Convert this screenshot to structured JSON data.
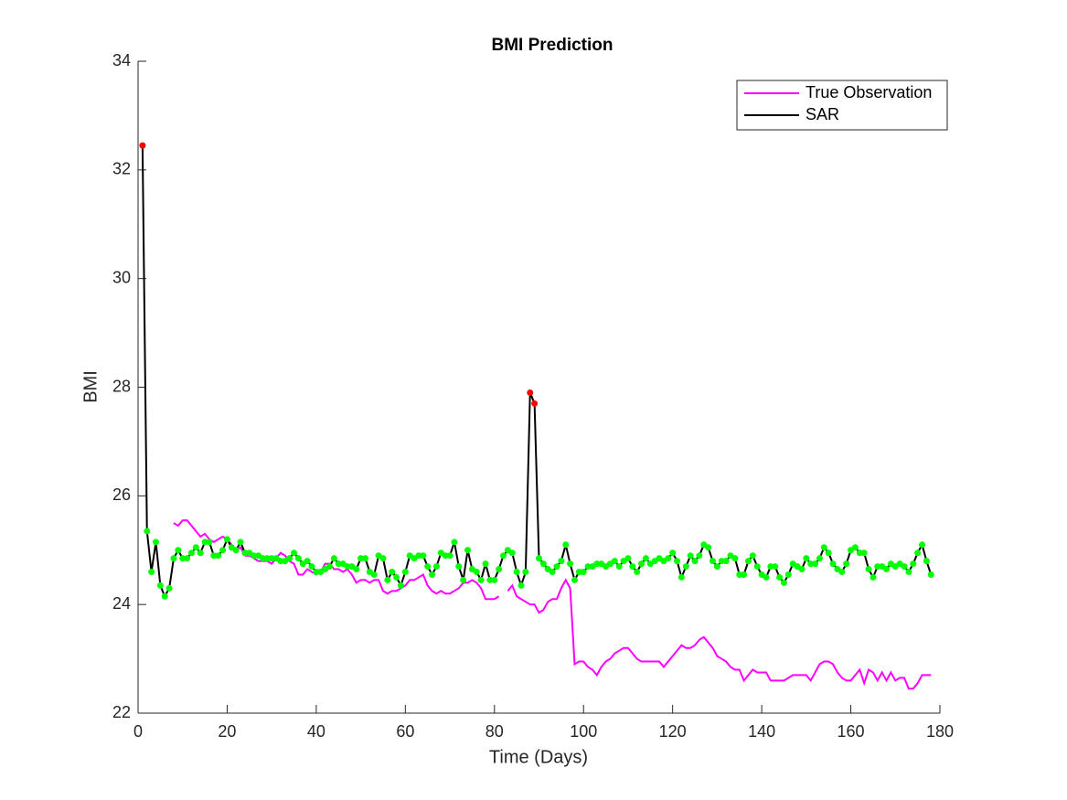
{
  "chart_data": {
    "type": "line",
    "title": "BMI Prediction",
    "x_label": "Time (Days)",
    "y_label": "BMI",
    "x": [
      1,
      2,
      3,
      4,
      5,
      6,
      7,
      8,
      9,
      10,
      11,
      12,
      13,
      14,
      15,
      16,
      17,
      18,
      19,
      20,
      21,
      22,
      23,
      24,
      25,
      26,
      27,
      28,
      29,
      30,
      31,
      32,
      33,
      34,
      35,
      36,
      37,
      38,
      39,
      40,
      41,
      42,
      43,
      44,
      45,
      46,
      47,
      48,
      49,
      50,
      51,
      52,
      53,
      54,
      55,
      56,
      57,
      58,
      59,
      60,
      61,
      62,
      63,
      64,
      65,
      66,
      67,
      68,
      69,
      70,
      71,
      72,
      73,
      74,
      75,
      76,
      77,
      78,
      79,
      80,
      81,
      82,
      83,
      84,
      85,
      86,
      87,
      88,
      89,
      90,
      91,
      92,
      93,
      94,
      95,
      96,
      97,
      98,
      99,
      100,
      101,
      102,
      103,
      104,
      105,
      106,
      107,
      108,
      109,
      110,
      111,
      112,
      113,
      114,
      115,
      116,
      117,
      118,
      119,
      120,
      121,
      122,
      123,
      124,
      125,
      126,
      127,
      128,
      129,
      130,
      131,
      132,
      133,
      134,
      135,
      136,
      137,
      138,
      139,
      140,
      141,
      142,
      143,
      144,
      145,
      146,
      147,
      148,
      149,
      150,
      151,
      152,
      153,
      154,
      155,
      156,
      157,
      158,
      159,
      160,
      161,
      162,
      163,
      164,
      165,
      166,
      167,
      168,
      169,
      170,
      171,
      172,
      173,
      174,
      175,
      176,
      177,
      178
    ],
    "series": [
      {
        "name": "True Observation",
        "color": "#ff00ff",
        "values": [
          null,
          null,
          null,
          null,
          null,
          null,
          null,
          25.5,
          25.45,
          25.55,
          25.55,
          25.45,
          25.35,
          25.25,
          25.3,
          25.2,
          25.15,
          25.2,
          25.25,
          25.2,
          25.1,
          25.0,
          25.05,
          24.9,
          24.9,
          24.85,
          24.8,
          24.8,
          24.8,
          24.75,
          24.85,
          24.95,
          24.9,
          24.8,
          24.75,
          24.55,
          24.55,
          24.65,
          24.6,
          24.55,
          24.6,
          24.75,
          24.75,
          24.65,
          24.65,
          24.6,
          24.65,
          24.55,
          24.4,
          24.45,
          24.45,
          24.4,
          24.45,
          24.45,
          24.25,
          24.2,
          24.25,
          24.25,
          24.3,
          24.35,
          24.45,
          24.45,
          24.5,
          24.55,
          24.35,
          24.25,
          24.2,
          24.25,
          24.2,
          24.2,
          24.25,
          24.3,
          24.4,
          24.4,
          24.45,
          24.4,
          24.3,
          24.1,
          24.1,
          24.1,
          24.15,
          null,
          24.25,
          24.35,
          24.15,
          24.1,
          24.05,
          24.0,
          24.0,
          23.85,
          23.9,
          24.05,
          24.1,
          24.1,
          24.3,
          24.45,
          24.3,
          22.9,
          22.95,
          22.95,
          22.85,
          22.8,
          22.7,
          22.85,
          22.95,
          23.0,
          23.1,
          23.15,
          23.2,
          23.2,
          23.1,
          23.0,
          22.95,
          22.95,
          22.95,
          22.95,
          22.95,
          22.85,
          22.95,
          23.05,
          23.15,
          23.25,
          23.2,
          23.2,
          23.25,
          23.35,
          23.4,
          23.3,
          23.2,
          23.05,
          23.0,
          22.95,
          22.85,
          22.8,
          22.8,
          22.6,
          22.7,
          22.8,
          22.75,
          22.75,
          22.75,
          22.6,
          22.6,
          22.6,
          22.6,
          22.65,
          22.7,
          22.7,
          22.7,
          22.7,
          22.6,
          22.75,
          22.9,
          22.95,
          22.95,
          22.9,
          22.75,
          22.65,
          22.6,
          22.6,
          22.7,
          22.8,
          22.55,
          22.8,
          22.75,
          22.6,
          22.75,
          22.6,
          22.75,
          22.6,
          22.65,
          22.65,
          22.45,
          22.45,
          22.55,
          22.7,
          22.7,
          22.7
        ]
      },
      {
        "name": "SAR",
        "color": "#000000",
        "values": [
          32.45,
          25.35,
          24.6,
          25.15,
          24.35,
          24.15,
          24.3,
          24.85,
          25.0,
          24.85,
          24.85,
          24.95,
          25.05,
          24.95,
          25.15,
          25.15,
          24.9,
          24.9,
          25.0,
          25.2,
          25.05,
          25.0,
          25.15,
          24.95,
          24.95,
          24.9,
          24.9,
          24.85,
          24.85,
          24.85,
          24.85,
          24.8,
          24.8,
          24.85,
          24.95,
          24.85,
          24.75,
          24.8,
          24.7,
          24.6,
          24.6,
          24.65,
          24.7,
          24.85,
          24.75,
          24.75,
          24.7,
          24.7,
          24.65,
          24.85,
          24.85,
          24.6,
          24.55,
          24.9,
          24.85,
          24.45,
          24.6,
          24.5,
          24.35,
          24.6,
          24.9,
          24.85,
          24.9,
          24.9,
          24.7,
          24.55,
          24.7,
          24.95,
          24.9,
          24.9,
          25.15,
          24.7,
          24.45,
          25.0,
          24.65,
          24.6,
          24.45,
          24.75,
          24.45,
          24.45,
          24.65,
          24.9,
          25.0,
          24.95,
          24.6,
          24.35,
          24.6,
          27.9,
          27.7,
          24.85,
          24.75,
          24.65,
          24.6,
          24.7,
          24.8,
          25.1,
          24.75,
          24.45,
          24.6,
          24.6,
          24.7,
          24.7,
          24.75,
          24.75,
          24.7,
          24.75,
          24.8,
          24.7,
          24.8,
          24.85,
          24.7,
          24.6,
          24.75,
          24.85,
          24.75,
          24.8,
          24.85,
          24.8,
          24.85,
          24.95,
          24.8,
          24.5,
          24.7,
          24.9,
          24.8,
          24.9,
          25.1,
          25.05,
          24.8,
          24.7,
          24.8,
          24.8,
          24.9,
          24.85,
          24.55,
          24.55,
          24.8,
          24.9,
          24.7,
          24.55,
          24.5,
          24.7,
          24.7,
          24.5,
          24.4,
          24.55,
          24.75,
          24.7,
          24.65,
          24.85,
          24.75,
          24.75,
          24.85,
          25.05,
          24.95,
          24.75,
          24.65,
          24.6,
          24.75,
          25.0,
          25.05,
          24.95,
          24.95,
          24.65,
          24.5,
          24.7,
          24.7,
          24.65,
          24.75,
          24.7,
          24.75,
          24.7,
          24.6,
          24.75,
          24.95,
          25.1,
          24.8,
          24.55
        ],
        "marker_colors": [
          "#ff0000",
          "#00ff00",
          "#00ff00",
          "#00ff00",
          "#00ff00",
          "#00ff00",
          "#00ff00",
          "#00ff00",
          "#00ff00",
          "#00ff00",
          "#00ff00",
          "#00ff00",
          "#00ff00",
          "#00ff00",
          "#00ff00",
          "#00ff00",
          "#00ff00",
          "#00ff00",
          "#00ff00",
          "#00ff00",
          "#00ff00",
          "#00ff00",
          "#00ff00",
          "#00ff00",
          "#00ff00",
          "#00ff00",
          "#00ff00",
          "#00ff00",
          "#00ff00",
          "#00ff00",
          "#00ff00",
          "#00ff00",
          "#00ff00",
          "#00ff00",
          "#00ff00",
          "#00ff00",
          "#00ff00",
          "#00ff00",
          "#00ff00",
          "#00ff00",
          "#00ff00",
          "#00ff00",
          "#00ff00",
          "#00ff00",
          "#00ff00",
          "#00ff00",
          "#00ff00",
          "#00ff00",
          "#00ff00",
          "#00ff00",
          "#00ff00",
          "#00ff00",
          "#00ff00",
          "#00ff00",
          "#00ff00",
          "#00ff00",
          "#00ff00",
          "#00ff00",
          "#00ff00",
          "#00ff00",
          "#00ff00",
          "#00ff00",
          "#00ff00",
          "#00ff00",
          "#00ff00",
          "#00ff00",
          "#00ff00",
          "#00ff00",
          "#00ff00",
          "#00ff00",
          "#00ff00",
          "#00ff00",
          "#00ff00",
          "#00ff00",
          "#00ff00",
          "#00ff00",
          "#00ff00",
          "#00ff00",
          "#00ff00",
          "#00ff00",
          "#00ff00",
          "#00ff00",
          "#00ff00",
          "#00ff00",
          "#00ff00",
          "#00ff00",
          "#00ff00",
          "#ff0000",
          "#ff0000",
          "#00ff00",
          "#00ff00",
          "#00ff00",
          "#00ff00",
          "#00ff00",
          "#00ff00",
          "#00ff00",
          "#00ff00",
          "#00ff00",
          "#00ff00",
          "#00ff00",
          "#00ff00",
          "#00ff00",
          "#00ff00",
          "#00ff00",
          "#00ff00",
          "#00ff00",
          "#00ff00",
          "#00ff00",
          "#00ff00",
          "#00ff00",
          "#00ff00",
          "#00ff00",
          "#00ff00",
          "#00ff00",
          "#00ff00",
          "#00ff00",
          "#00ff00",
          "#00ff00",
          "#00ff00",
          "#00ff00",
          "#00ff00",
          "#00ff00",
          "#00ff00",
          "#00ff00",
          "#00ff00",
          "#00ff00",
          "#00ff00",
          "#00ff00",
          "#00ff00",
          "#00ff00",
          "#00ff00",
          "#00ff00",
          "#00ff00",
          "#00ff00",
          "#00ff00",
          "#00ff00",
          "#00ff00",
          "#00ff00",
          "#00ff00",
          "#00ff00",
          "#00ff00",
          "#00ff00",
          "#00ff00",
          "#00ff00",
          "#00ff00",
          "#00ff00",
          "#00ff00",
          "#00ff00",
          "#00ff00",
          "#00ff00",
          "#00ff00",
          "#00ff00",
          "#00ff00",
          "#00ff00",
          "#00ff00",
          "#00ff00",
          "#00ff00",
          "#00ff00",
          "#00ff00",
          "#00ff00",
          "#00ff00",
          "#00ff00",
          "#00ff00",
          "#00ff00",
          "#00ff00",
          "#00ff00",
          "#00ff00",
          "#00ff00",
          "#00ff00",
          "#00ff00",
          "#00ff00",
          "#00ff00",
          "#00ff00",
          "#00ff00",
          "#00ff00",
          "#00ff00",
          "#00ff00",
          "#00ff00",
          "#00ff00",
          "#00ff00",
          "#00ff00",
          "#00ff00"
        ]
      }
    ],
    "xlim": [
      0,
      180
    ],
    "xticks": [
      0,
      20,
      40,
      60,
      80,
      100,
      120,
      140,
      160,
      180
    ],
    "ylim": [
      22,
      34
    ],
    "yticks": [
      22,
      24,
      26,
      28,
      30,
      32,
      34
    ],
    "legend": "upper right",
    "grid": false
  }
}
